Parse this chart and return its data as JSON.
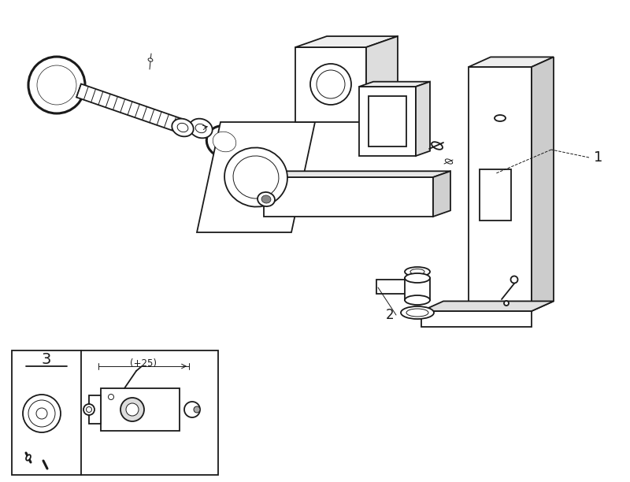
{
  "bg_color": "#ffffff",
  "line_color": "#1a1a1a",
  "lw": 1.3,
  "tlw": 0.7,
  "thk": 2.2,
  "label_1": "1",
  "label_2": "2",
  "label_3": "3",
  "plus25_text": "(+25)"
}
